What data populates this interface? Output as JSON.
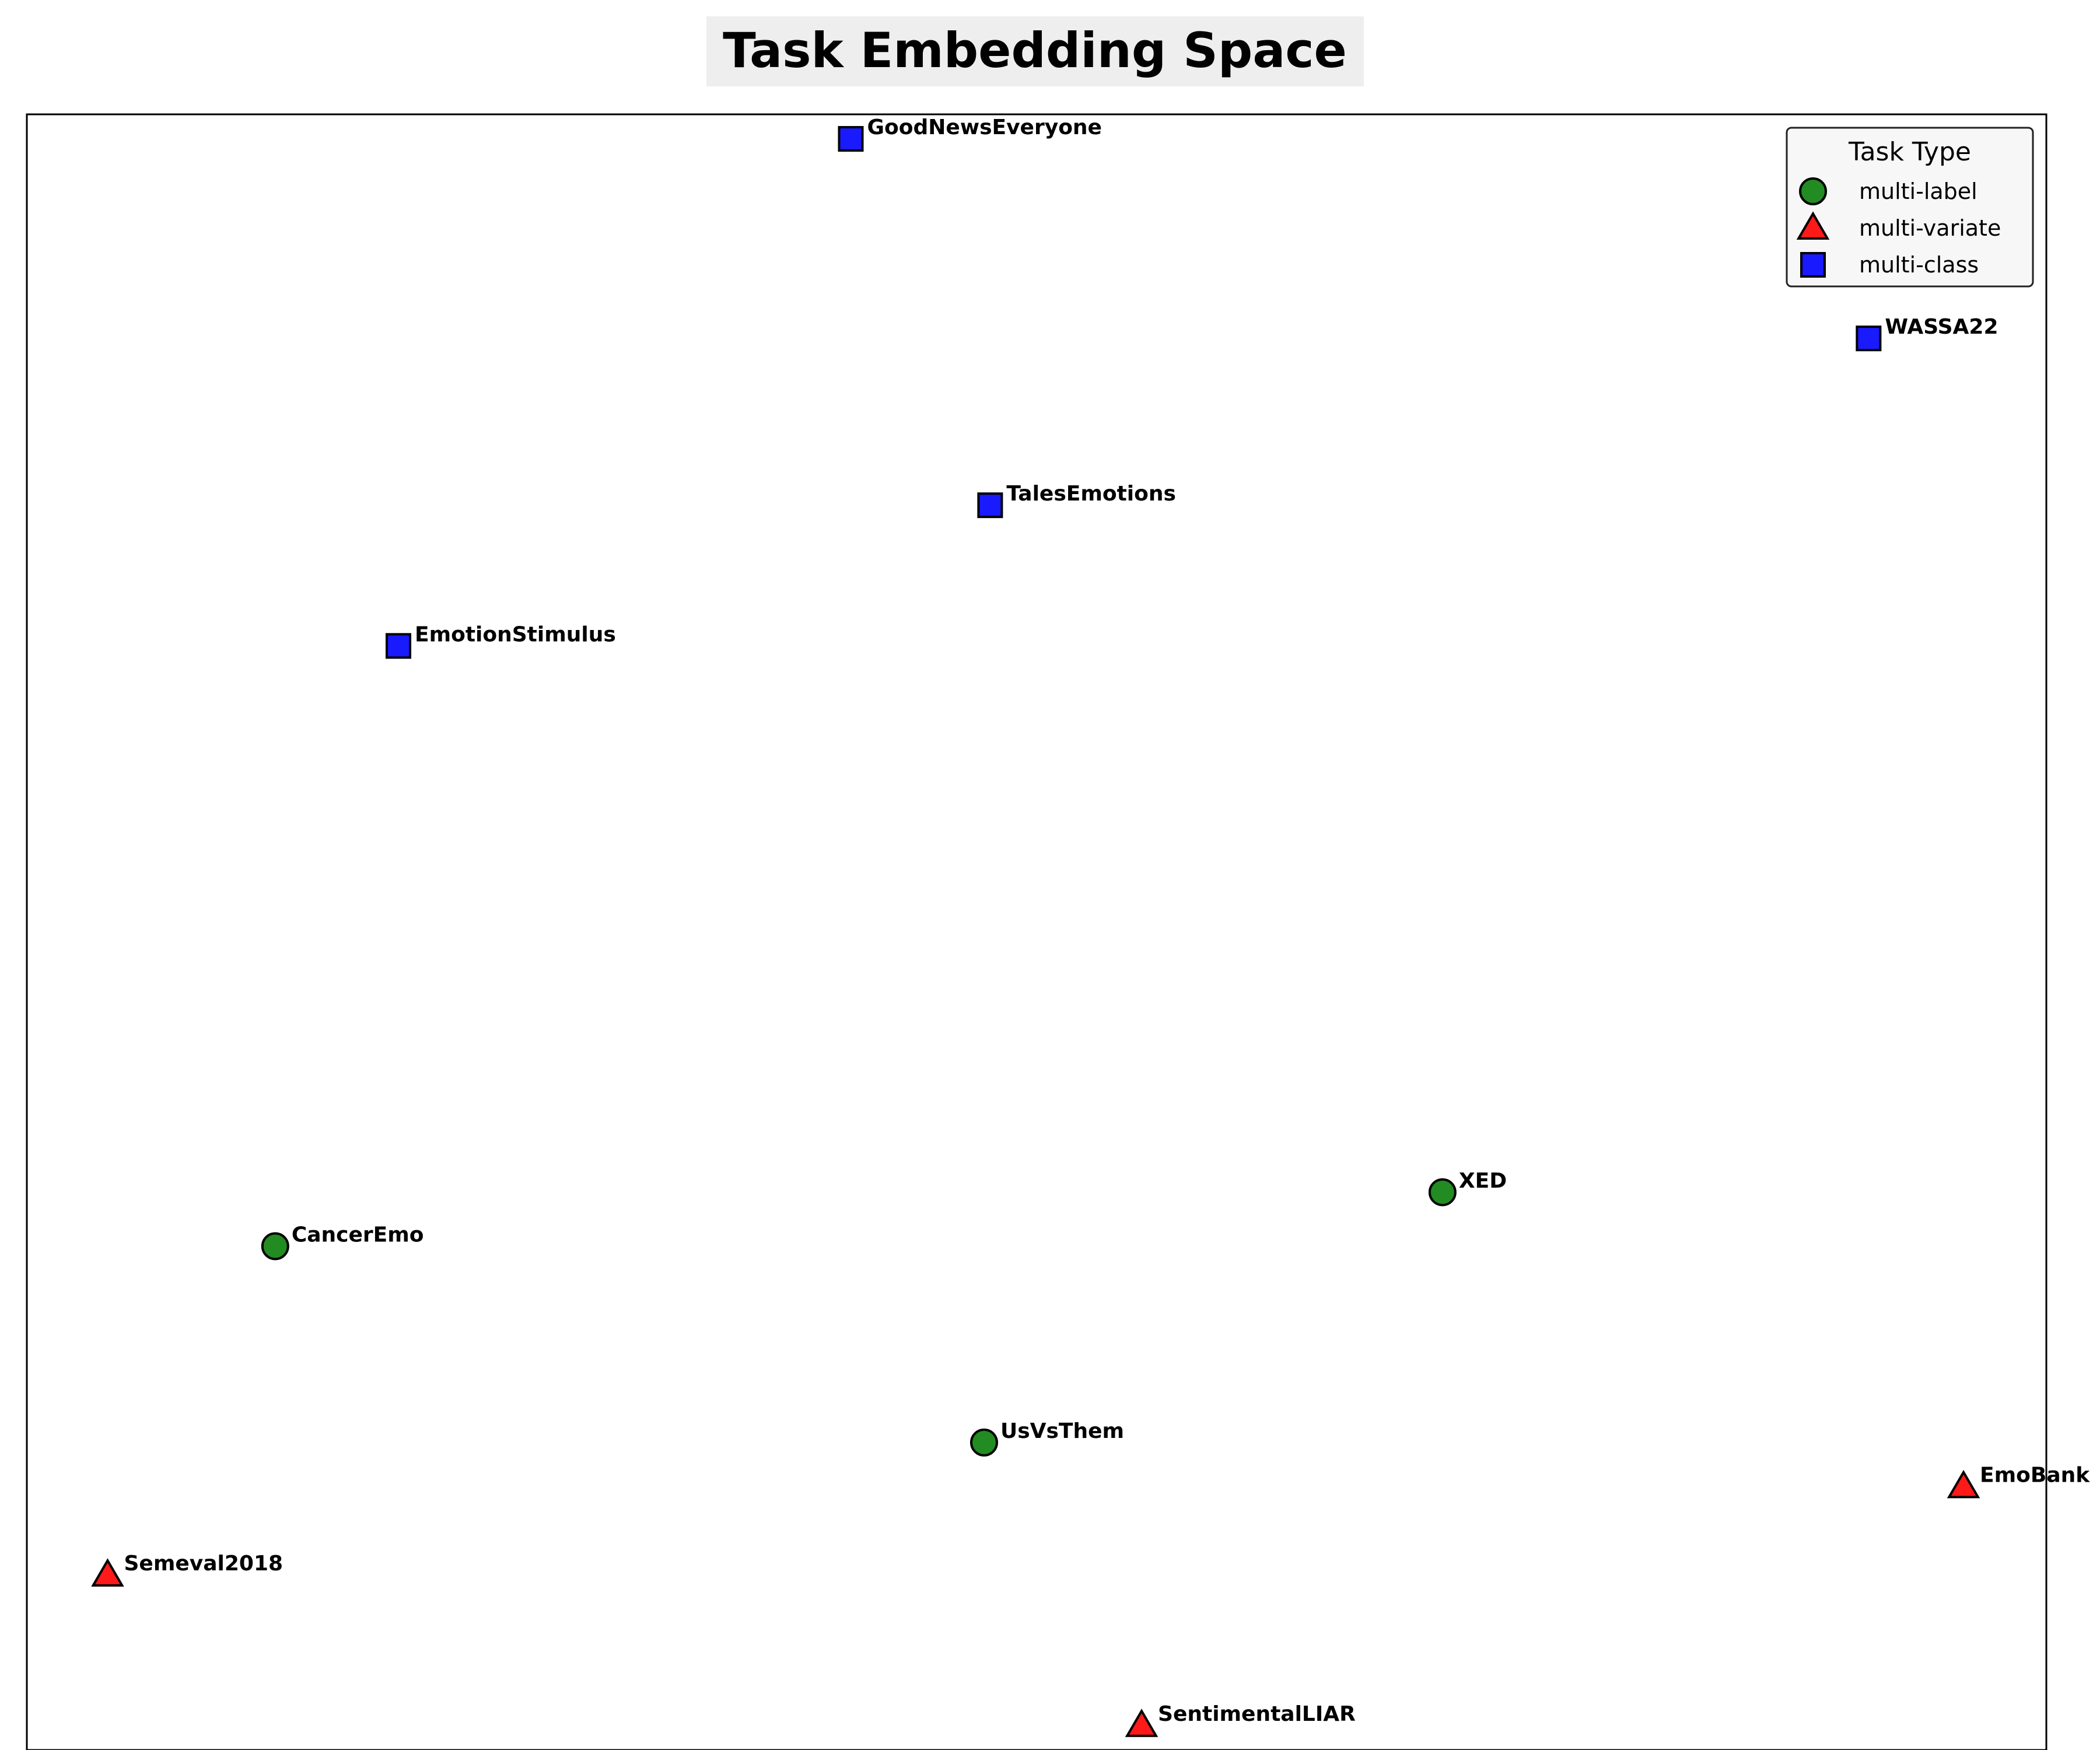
{
  "chart_data": {
    "type": "scatter",
    "title": "Task Embedding Space",
    "xlabel": "",
    "ylabel": "",
    "xlim": [
      0,
      100
    ],
    "ylim": [
      0,
      100
    ],
    "grid": false,
    "ticks": false,
    "legend": {
      "title": "Task Type",
      "placement": "top-right"
    },
    "series": [
      {
        "name": "multi-label",
        "marker": "circle",
        "color": "#228B22",
        "points": [
          {
            "label": "CancerEmo",
            "x": 12.3,
            "y": 30.8
          },
          {
            "label": "XED",
            "x": 70.1,
            "y": 34.1
          },
          {
            "label": "UsVsThem",
            "x": 47.4,
            "y": 18.8
          }
        ]
      },
      {
        "name": "multi-variate",
        "marker": "triangle",
        "color": "#FF1A1A",
        "points": [
          {
            "label": "Semeval2018",
            "x": 4.0,
            "y": 10.7
          },
          {
            "label": "EmoBank",
            "x": 95.9,
            "y": 16.1
          },
          {
            "label": "SentimentalLIAR",
            "x": 55.2,
            "y": 1.5
          }
        ]
      },
      {
        "name": "multi-class",
        "marker": "square",
        "color": "#1A1AFF",
        "points": [
          {
            "label": "GoodNewsEveryone",
            "x": 40.8,
            "y": 98.5
          },
          {
            "label": "WASSA22",
            "x": 91.2,
            "y": 86.3
          },
          {
            "label": "TalesEmotions",
            "x": 47.7,
            "y": 76.1
          },
          {
            "label": "EmotionStimulus",
            "x": 18.4,
            "y": 67.5
          }
        ]
      }
    ]
  }
}
